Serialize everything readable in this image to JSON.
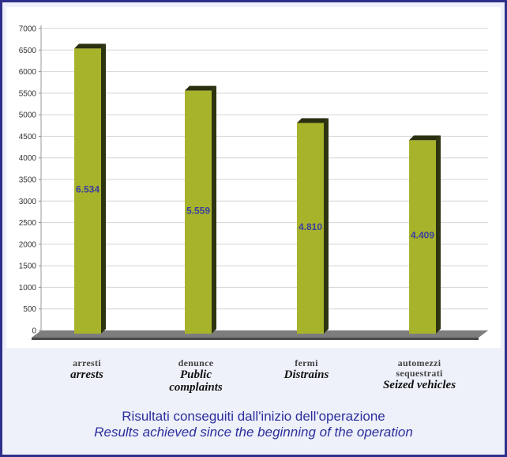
{
  "chart_data": {
    "type": "bar",
    "categories": [
      {
        "it": "arresti",
        "en": "arrests"
      },
      {
        "it": "denunce",
        "en": "Public complaints"
      },
      {
        "it": "fermi",
        "en": "Distrains"
      },
      {
        "it": "automezzi sequestrati",
        "en": "Seized vehicles"
      }
    ],
    "values": [
      6534,
      5559,
      4810,
      4409
    ],
    "data_labels": [
      "6.534",
      "5.559",
      "4.810",
      "4.409"
    ],
    "yticks": [
      0,
      500,
      1000,
      1500,
      2000,
      2500,
      3000,
      3500,
      4000,
      4500,
      5000,
      5500,
      6000,
      6500,
      7000
    ],
    "ylim": [
      0,
      7000
    ],
    "grid": true,
    "bar_color": "#a8b32c",
    "bar_shadow_color": "#2d3410",
    "label_color": "#3b3f9e"
  },
  "caption": {
    "line_it": "Risultati conseguiti dall'inizio dell'operazione",
    "line_en": "Results achieved since the beginning of the operation"
  }
}
